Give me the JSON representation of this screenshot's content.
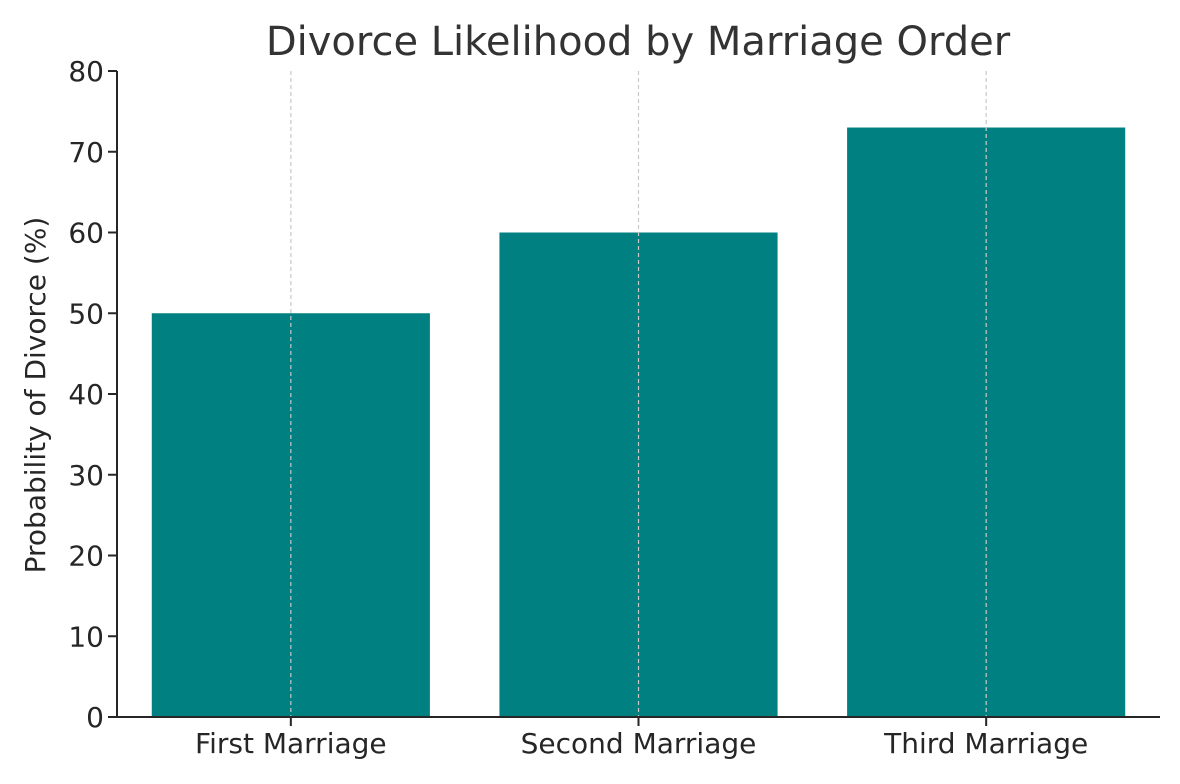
{
  "chart_data": {
    "type": "bar",
    "title": "Divorce Likelihood by Marriage Order",
    "xlabel": "",
    "ylabel": "Probability of Divorce (%)",
    "categories": [
      "First Marriage",
      "Second Marriage",
      "Third Marriage"
    ],
    "values": [
      50,
      60,
      73
    ],
    "ylim": [
      0,
      80
    ],
    "yticks": [
      0,
      10,
      20,
      30,
      40,
      50,
      60,
      70,
      80
    ],
    "grid": "vertical-dashed",
    "colors": {
      "bar": "#008080",
      "grid": "#c8c8c8",
      "axis": "#262626"
    }
  }
}
